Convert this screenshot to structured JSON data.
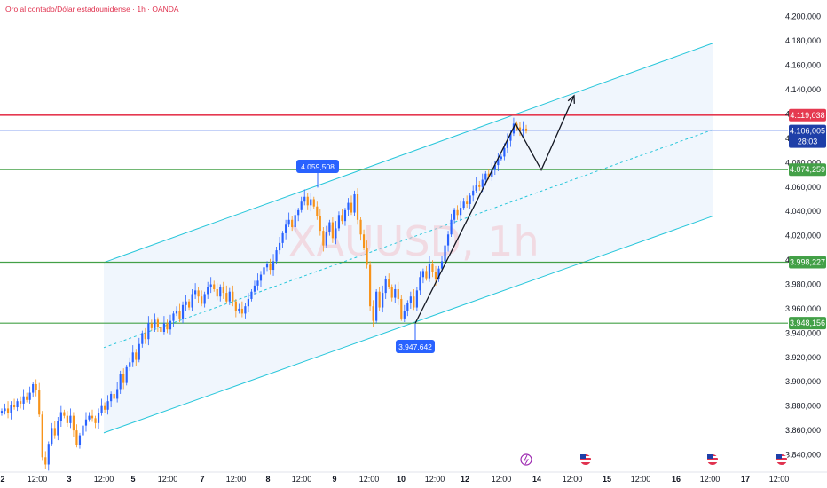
{
  "title": "Oro al contado/Dólar estadounidense · 1h · OANDA",
  "watermark": "XAUUSD, 1h",
  "colors": {
    "up": "#2962ff",
    "down": "#f7931a",
    "channel": "#26c6da",
    "resistance": "#e53950",
    "support": "#43a047",
    "current": "#1e3fa8"
  },
  "chart_data": {
    "type": "candlestick",
    "ylim": [
      3828,
      4210
    ],
    "xlim": [
      0,
      932
    ],
    "price_ticks": [
      "4.200,000",
      "4.180,000",
      "4.160,000",
      "4.140,000",
      "4.120,000",
      "4.100,000",
      "4.080,000",
      "4.060,000",
      "4.040,000",
      "4.020,000",
      "4.000,000",
      "3.980,000",
      "3.960,000",
      "3.940,000",
      "3.920,000",
      "3.900,000",
      "3.880,000",
      "3.860,000",
      "3.840,000"
    ],
    "price_tick_values": [
      4200,
      4180,
      4160,
      4140,
      4120,
      4100,
      4080,
      4060,
      4040,
      4020,
      4000,
      3980,
      3960,
      3940,
      3920,
      3900,
      3880,
      3860,
      3840
    ],
    "date_labels": [
      {
        "t": "2",
        "x": 3,
        "bold": true
      },
      {
        "t": "12:00",
        "x": 42
      },
      {
        "t": "3",
        "x": 78,
        "bold": true
      },
      {
        "t": "12:00",
        "x": 117
      },
      {
        "t": "5",
        "x": 150,
        "bold": true
      },
      {
        "t": "12:00",
        "x": 189
      },
      {
        "t": "7",
        "x": 228,
        "bold": true
      },
      {
        "t": "12:00",
        "x": 266
      },
      {
        "t": "8",
        "x": 302,
        "bold": true
      },
      {
        "t": "12:00",
        "x": 340
      },
      {
        "t": "9",
        "x": 377,
        "bold": true
      },
      {
        "t": "12:00",
        "x": 416
      },
      {
        "t": "10",
        "x": 452,
        "bold": true
      },
      {
        "t": "12:00",
        "x": 490
      },
      {
        "t": "12",
        "x": 524,
        "bold": true
      },
      {
        "t": "12:00",
        "x": 565
      },
      {
        "t": "14",
        "x": 605,
        "bold": true
      },
      {
        "t": "12:00",
        "x": 645
      },
      {
        "t": "15",
        "x": 684,
        "bold": true
      },
      {
        "t": "12:00",
        "x": 722
      },
      {
        "t": "16",
        "x": 762,
        "bold": true
      },
      {
        "t": "12:00",
        "x": 800
      },
      {
        "t": "17",
        "x": 840,
        "bold": true
      },
      {
        "t": "12:00",
        "x": 878
      }
    ],
    "closes": [
      3876,
      3878,
      3874,
      3881,
      3879,
      3884,
      3882,
      3888,
      3885,
      3891,
      3898,
      3893,
      3873,
      3838,
      3832,
      3849,
      3862,
      3856,
      3868,
      3875,
      3872,
      3866,
      3872,
      3860,
      3848,
      3856,
      3864,
      3869,
      3872,
      3870,
      3866,
      3874,
      3880,
      3877,
      3884,
      3890,
      3886,
      3894,
      3906,
      3899,
      3912,
      3916,
      3924,
      3918,
      3931,
      3940,
      3935,
      3948,
      3944,
      3951,
      3945,
      3941,
      3948,
      3943,
      3950,
      3956,
      3958,
      3952,
      3963,
      3966,
      3961,
      3972,
      3975,
      3970,
      3964,
      3972,
      3978,
      3980,
      3976,
      3970,
      3978,
      3973,
      3966,
      3974,
      3966,
      3958,
      3960,
      3956,
      3962,
      3968,
      3974,
      3979,
      3983,
      3988,
      3994,
      3997,
      3992,
      3999,
      4008,
      4014,
      4022,
      4029,
      4033,
      4027,
      4037,
      4041,
      4048,
      4052,
      4045,
      4050,
      4044,
      4036,
      4024,
      4012,
      4023,
      4031,
      4018,
      4026,
      4037,
      4032,
      4041,
      4047,
      4039,
      4054,
      4033,
      4021,
      4010,
      3996,
      3962,
      3950,
      3974,
      3961,
      3973,
      3984,
      3978,
      3969,
      3976,
      3968,
      3952,
      3958,
      3965,
      3970,
      3961,
      3975,
      3986,
      3991,
      3985,
      3997,
      3990,
      3984,
      3993,
      3999,
      4012,
      4021,
      4033,
      4041,
      4037,
      4043,
      4048,
      4046,
      4053,
      4057,
      4062,
      4060,
      4066,
      4071,
      4068,
      4074,
      4078,
      4083,
      4085,
      4092,
      4098,
      4104,
      4112,
      4109,
      4106,
      4108,
      4106
    ],
    "levels": [
      {
        "name": "resistance",
        "value": 4119.038,
        "label": "4.119,038",
        "color": "#e53950"
      },
      {
        "name": "support-1",
        "value": 4074.259,
        "label": "4.074,259",
        "color": "#43a047"
      },
      {
        "name": "support-2",
        "value": 3998.227,
        "label": "3.998,227",
        "color": "#43a047"
      },
      {
        "name": "support-3",
        "value": 3948.156,
        "label": "3.948,156",
        "color": "#43a047"
      }
    ],
    "current_price": {
      "value": 4106.005,
      "label": "4.106,005",
      "countdown": "28:03"
    },
    "callouts": [
      {
        "name": "high-callout",
        "label": "4.059,508",
        "value": 4059.508
      },
      {
        "name": "low-callout",
        "label": "3.947,642",
        "value": 3947.642
      }
    ]
  }
}
